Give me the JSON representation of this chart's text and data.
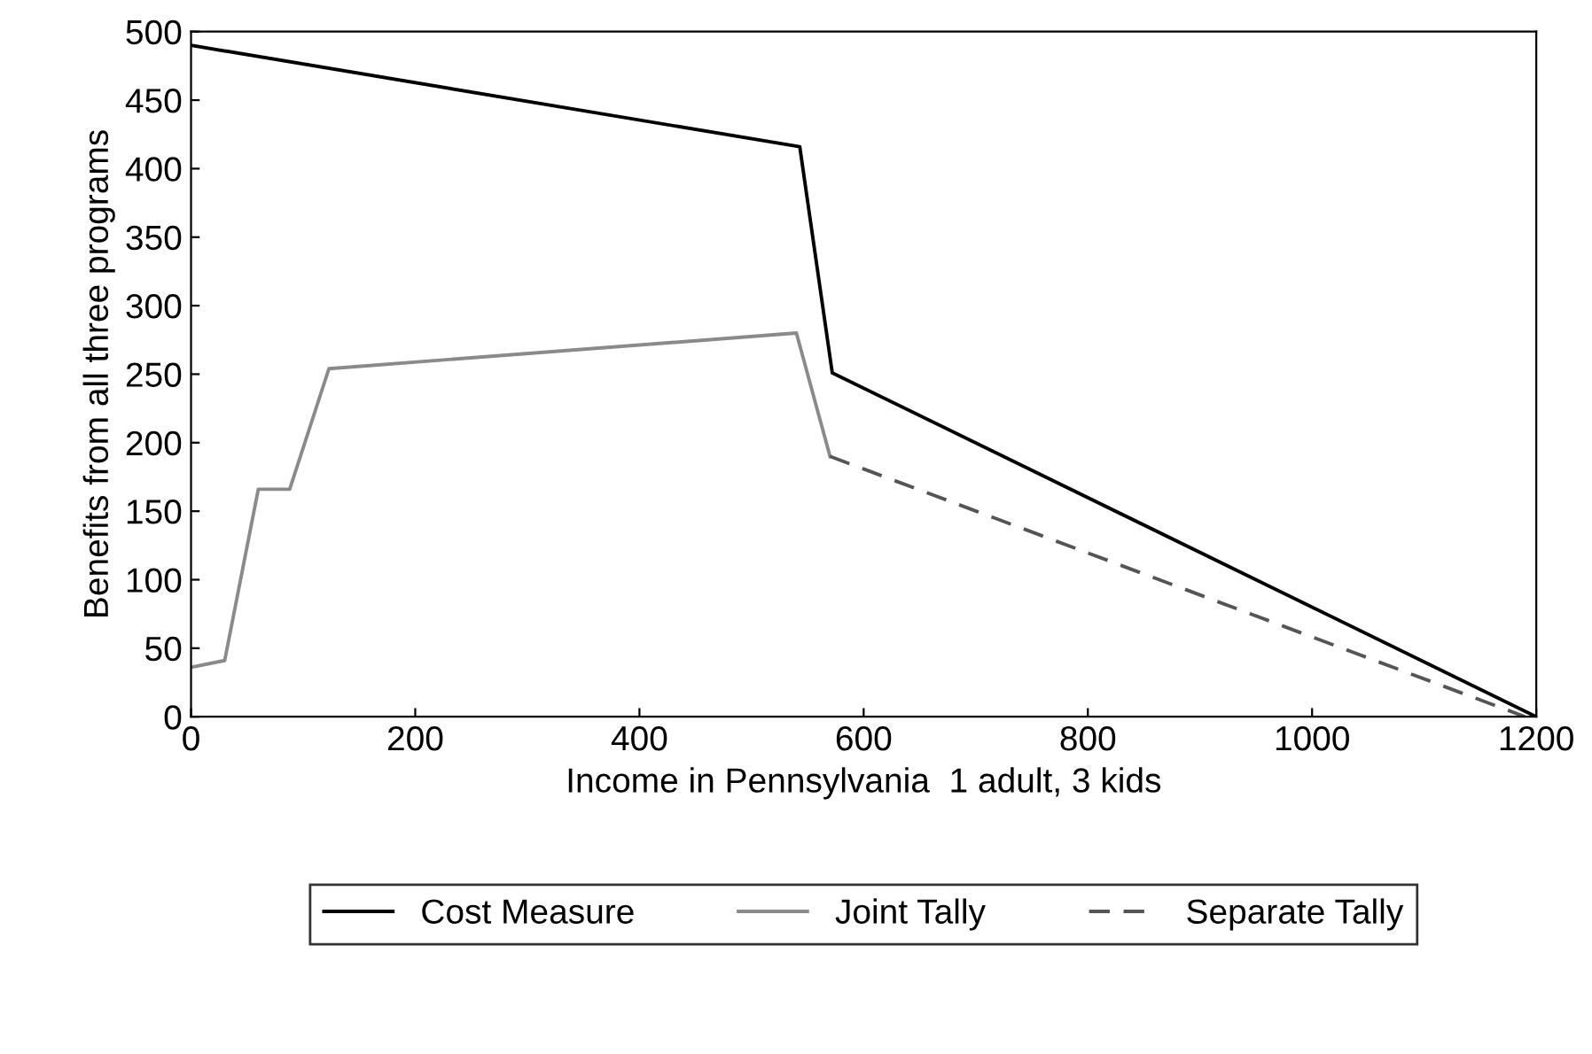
{
  "chart_data": {
    "type": "line",
    "xlabel": "Income in Pennsylvania  1 adult, 3 kids",
    "ylabel": "Benefits from all three programs",
    "xlim": [
      0,
      1200
    ],
    "xticks": [
      0,
      200,
      400,
      600,
      800,
      1000,
      1200
    ],
    "ylim": [
      0,
      500
    ],
    "yticks": [
      0,
      50,
      100,
      150,
      200,
      250,
      300,
      350,
      400,
      450,
      500
    ],
    "grid": false,
    "legend": "bottom",
    "series": [
      {
        "name": "Cost Measure",
        "color": "#000000",
        "line_style": "solid",
        "x": [
          0,
          543,
          572,
          1200
        ],
        "values": [
          490,
          416,
          251,
          0
        ]
      },
      {
        "name": "Joint Tally",
        "color": "#8a8a8a",
        "line_style": "solid",
        "x": [
          0,
          30,
          60,
          88,
          123,
          540,
          570
        ],
        "values": [
          36,
          41,
          166,
          166,
          254,
          280,
          190
        ]
      },
      {
        "name": "Separate Tally",
        "color": "#555555",
        "line_style": "dashed",
        "x": [
          570,
          1190
        ],
        "values": [
          190,
          0
        ]
      }
    ]
  }
}
